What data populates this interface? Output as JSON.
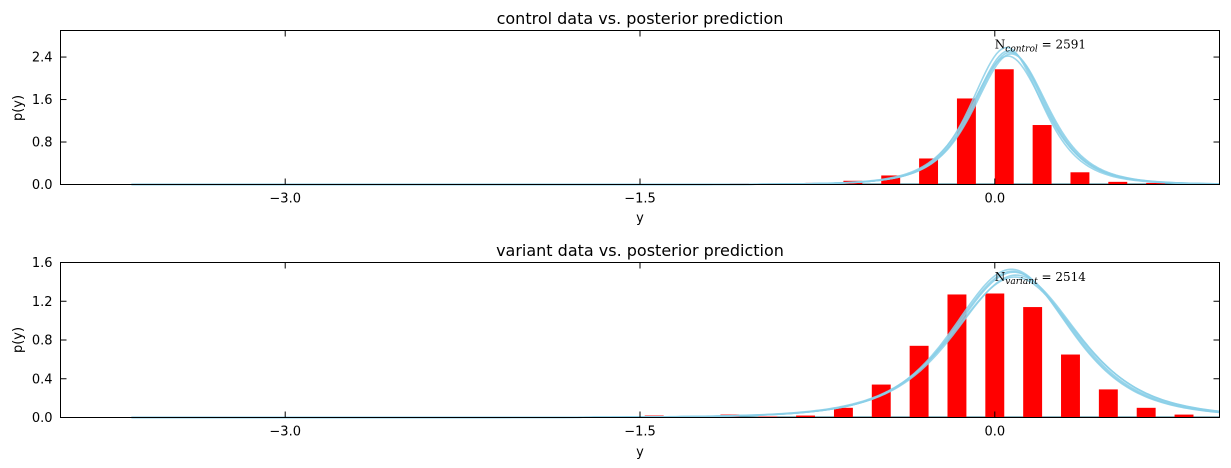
{
  "chart_data": [
    {
      "type": "bar",
      "title": "control data vs. posterior prediction",
      "xlabel": "y",
      "ylabel": "p(y)",
      "xlim": [
        -3.95,
        0.95
      ],
      "ylim": [
        0,
        2.9
      ],
      "xticks": [
        -3.0,
        -1.5,
        0.0
      ],
      "xtick_labels": [
        "−3.0",
        "−1.5",
        "0.0"
      ],
      "yticks": [
        0.0,
        0.8,
        1.6,
        2.4
      ],
      "ytick_labels": [
        "0.0",
        "0.8",
        "1.6",
        "2.4"
      ],
      "annotation": {
        "main": "N",
        "sub": "control",
        "tail": " = 2591",
        "x": 0.0,
        "y": 2.56
      },
      "bar_color": "#ff0000",
      "curve_color": "#89cfe7",
      "bar_width": 0.08,
      "bars": [
        {
          "x": -1.08,
          "y": 0.02
        },
        {
          "x": -0.92,
          "y": 0.02
        },
        {
          "x": -0.76,
          "y": 0.03
        },
        {
          "x": -0.6,
          "y": 0.07
        },
        {
          "x": -0.44,
          "y": 0.17
        },
        {
          "x": -0.28,
          "y": 0.49
        },
        {
          "x": -0.12,
          "y": 1.62
        },
        {
          "x": 0.04,
          "y": 2.17
        },
        {
          "x": 0.2,
          "y": 1.12
        },
        {
          "x": 0.36,
          "y": 0.23
        },
        {
          "x": 0.52,
          "y": 0.05
        },
        {
          "x": 0.68,
          "y": 0.03
        },
        {
          "x": 0.84,
          "y": 0.02
        }
      ],
      "posterior_curves": [
        {
          "mu": 0.06,
          "sigma": 0.158,
          "peak": 2.52
        },
        {
          "mu": 0.07,
          "sigma": 0.162,
          "peak": 2.46
        },
        {
          "mu": 0.05,
          "sigma": 0.155,
          "peak": 2.58
        },
        {
          "mu": 0.065,
          "sigma": 0.16,
          "peak": 2.49
        },
        {
          "mu": 0.055,
          "sigma": 0.164,
          "peak": 2.42
        }
      ]
    },
    {
      "type": "bar",
      "title": "variant data vs. posterior prediction",
      "xlabel": "y",
      "ylabel": "p(y)",
      "xlim": [
        -3.95,
        0.95
      ],
      "ylim": [
        0,
        1.6
      ],
      "xticks": [
        -3.0,
        -1.5,
        0.0
      ],
      "xtick_labels": [
        "−3.0",
        "−1.5",
        "0.0"
      ],
      "yticks": [
        0.0,
        0.4,
        0.8,
        1.2,
        1.6
      ],
      "ytick_labels": [
        "0.0",
        "0.4",
        "0.8",
        "1.2",
        "1.6"
      ],
      "annotation": {
        "main": "N",
        "sub": "variant",
        "tail": " = 2514",
        "x": 0.0,
        "y": 1.41
      },
      "bar_color": "#ff0000",
      "curve_color": "#89cfe7",
      "bar_width": 0.08,
      "bars": [
        {
          "x": -3.24,
          "y": 0.01
        },
        {
          "x": -2.92,
          "y": 0.01
        },
        {
          "x": -1.6,
          "y": 0.01
        },
        {
          "x": -1.44,
          "y": 0.02
        },
        {
          "x": -1.28,
          "y": 0.01
        },
        {
          "x": -1.12,
          "y": 0.03
        },
        {
          "x": -0.96,
          "y": 0.01
        },
        {
          "x": -0.8,
          "y": 0.02
        },
        {
          "x": -0.64,
          "y": 0.1
        },
        {
          "x": -0.48,
          "y": 0.34
        },
        {
          "x": -0.32,
          "y": 0.74
        },
        {
          "x": -0.16,
          "y": 1.27
        },
        {
          "x": 0.0,
          "y": 1.28
        },
        {
          "x": 0.16,
          "y": 1.14
        },
        {
          "x": 0.32,
          "y": 0.65
        },
        {
          "x": 0.48,
          "y": 0.29
        },
        {
          "x": 0.64,
          "y": 0.1
        },
        {
          "x": 0.8,
          "y": 0.03
        }
      ],
      "posterior_curves": [
        {
          "mu": 0.08,
          "sigma": 0.265,
          "peak": 1.5
        },
        {
          "mu": 0.09,
          "sigma": 0.27,
          "peak": 1.47
        },
        {
          "mu": 0.07,
          "sigma": 0.26,
          "peak": 1.53
        },
        {
          "mu": 0.085,
          "sigma": 0.275,
          "peak": 1.45
        },
        {
          "mu": 0.075,
          "sigma": 0.262,
          "peak": 1.51
        }
      ]
    }
  ]
}
